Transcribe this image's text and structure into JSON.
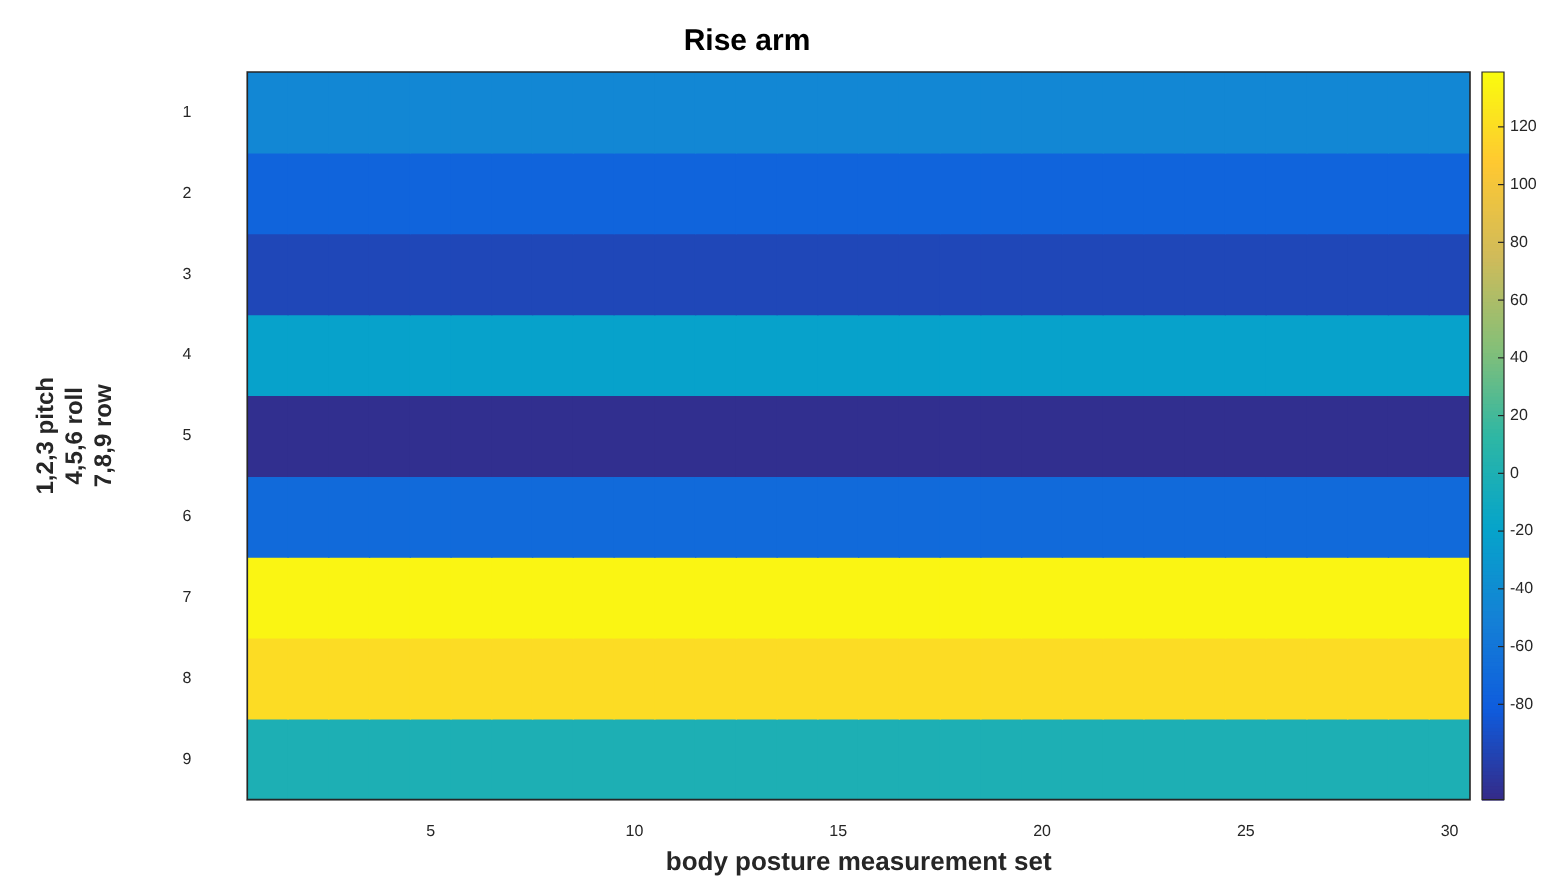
{
  "chart_data": {
    "type": "heatmap",
    "title": "Rise arm",
    "xlabel": "body posture measurement set",
    "ylabel": "1,2,3 pitch\n4,5,6 roll\n7,8,9 row",
    "categories": [
      null,
      null,
      null,
      null,
      "5",
      null,
      null,
      null,
      null,
      "10",
      null,
      null,
      null,
      null,
      "15",
      null,
      null,
      null,
      null,
      "20",
      null,
      null,
      null,
      null,
      "25",
      null,
      null,
      null,
      null,
      "30"
    ],
    "y_categories": [
      "1",
      "2",
      "3",
      "4",
      "5",
      "6",
      "7",
      "8",
      "9"
    ],
    "cells": [
      [
        -45,
        -45,
        -45,
        -45,
        -45,
        -45,
        -45,
        -45,
        -45,
        -45,
        -45,
        -45,
        -45,
        -45,
        -45,
        -45,
        -45,
        -45,
        -45,
        -45,
        -45,
        -45,
        -45,
        -45,
        -45,
        -45,
        -45,
        -45,
        -45,
        -45
      ],
      [
        -75,
        -75,
        -75,
        -75,
        -75,
        -75,
        -75,
        -75,
        -75,
        -75,
        -75,
        -75,
        -75,
        -75,
        -75,
        -75,
        -75,
        -75,
        -75,
        -75,
        -75,
        -75,
        -75,
        -75,
        -75,
        -75,
        -75,
        -75,
        -75,
        -75
      ],
      [
        -95,
        -95,
        -95,
        -95,
        -95,
        -95,
        -95,
        -95,
        -95,
        -95,
        -95,
        -95,
        -95,
        -95,
        -95,
        -95,
        -95,
        -95,
        -95,
        -95,
        -95,
        -95,
        -95,
        -95,
        -95,
        -95,
        -95,
        -95,
        -95,
        -95
      ],
      [
        -20,
        -20,
        -20,
        -20,
        -20,
        -20,
        -20,
        -20,
        -20,
        -20,
        -20,
        -20,
        -20,
        -20,
        -20,
        -20,
        -20,
        -20,
        -20,
        -20,
        -20,
        -20,
        -20,
        -20,
        -20,
        -20,
        -20,
        -20,
        -20,
        -20
      ],
      [
        -110,
        -110,
        -110,
        -110,
        -110,
        -110,
        -110,
        -110,
        -110,
        -110,
        -110,
        -110,
        -110,
        -110,
        -110,
        -110,
        -110,
        -110,
        -110,
        -110,
        -110,
        -110,
        -110,
        -110,
        -110,
        -110,
        -110,
        -110,
        -110,
        -110
      ],
      [
        -70,
        -70,
        -70,
        -70,
        -70,
        -70,
        -70,
        -70,
        -70,
        -70,
        -70,
        -70,
        -70,
        -70,
        -70,
        -70,
        -70,
        -70,
        -70,
        -70,
        -70,
        -70,
        -70,
        -70,
        -70,
        -70,
        -70,
        -70,
        -70,
        -70
      ],
      [
        135,
        135,
        135,
        135,
        135,
        135,
        135,
        135,
        135,
        135,
        135,
        135,
        135,
        135,
        135,
        135,
        135,
        135,
        135,
        135,
        135,
        135,
        135,
        135,
        135,
        135,
        135,
        135,
        135,
        135
      ],
      [
        120,
        120,
        120,
        120,
        120,
        120,
        120,
        120,
        120,
        120,
        120,
        120,
        120,
        120,
        120,
        120,
        120,
        120,
        120,
        120,
        120,
        120,
        120,
        120,
        120,
        120,
        120,
        120,
        120,
        120
      ],
      [
        0,
        0,
        0,
        0,
        0,
        0,
        0,
        0,
        0,
        0,
        0,
        0,
        0,
        0,
        0,
        0,
        0,
        0,
        0,
        0,
        0,
        0,
        0,
        0,
        0,
        0,
        0,
        0,
        0,
        0
      ]
    ],
    "clim": [
      -113,
      139
    ],
    "cticks": [
      -80,
      -60,
      -40,
      -20,
      0,
      20,
      40,
      60,
      80,
      100,
      120
    ]
  }
}
